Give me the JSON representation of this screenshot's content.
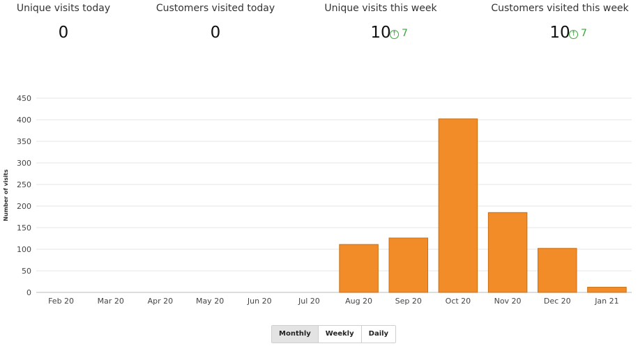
{
  "stats": [
    {
      "label": "Unique visits today",
      "value": "0",
      "delta": ""
    },
    {
      "label": "Customers visited today",
      "value": "0",
      "delta": ""
    },
    {
      "label": "Unique visits this week",
      "value": "10",
      "delta": "7"
    },
    {
      "label": "Customers visited this week",
      "value": "10",
      "delta": "7"
    }
  ],
  "colors": {
    "bar": "#f28c28",
    "bar_stroke": "#c86e14",
    "delta": "#3aa53a",
    "grid": "#e6e6e6"
  },
  "chart_data": {
    "type": "bar",
    "categories": [
      "Feb 20",
      "Mar 20",
      "Apr 20",
      "May 20",
      "Jun 20",
      "Jul 20",
      "Aug 20",
      "Sep 20",
      "Oct 20",
      "Nov 20",
      "Dec 20",
      "Jan 21"
    ],
    "values": [
      0,
      0,
      0,
      0,
      0,
      0,
      111,
      126,
      402,
      185,
      102,
      12
    ],
    "title": "",
    "xlabel": "",
    "ylabel": "Number of visits",
    "ylim": [
      0,
      450
    ],
    "yticks": [
      0,
      50,
      100,
      150,
      200,
      250,
      300,
      350,
      400,
      450
    ],
    "grid": true
  },
  "toggle": {
    "options": [
      "Monthly",
      "Weekly",
      "Daily"
    ],
    "active": "Monthly"
  }
}
